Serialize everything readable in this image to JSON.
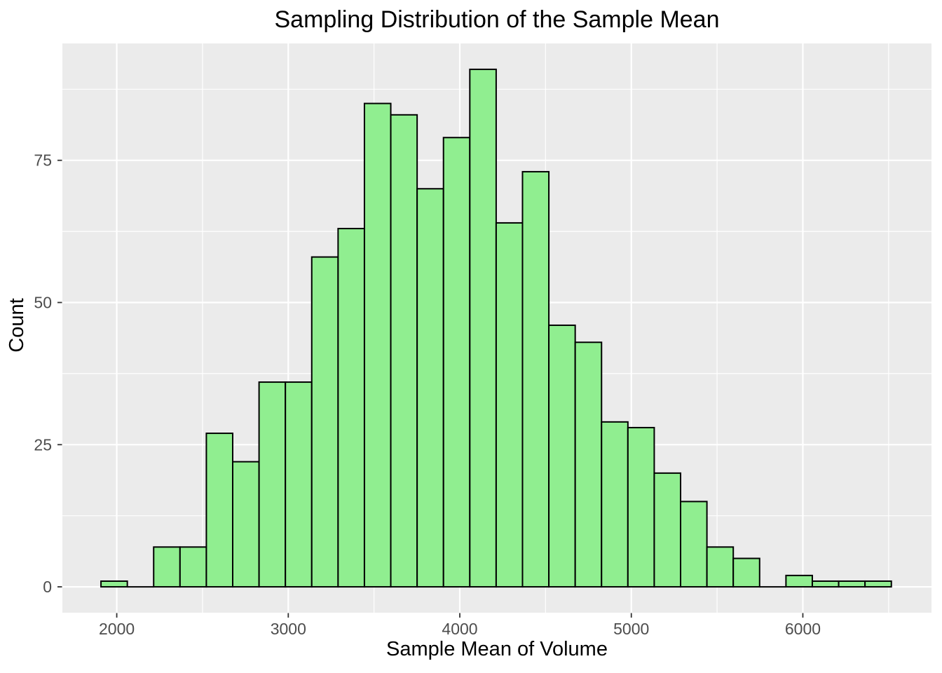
{
  "figure": {
    "title": "Sampling Distribution of the Sample Mean",
    "x_axis_title": "Sample Mean of Volume",
    "y_axis_title": "Count"
  },
  "chart_data": {
    "type": "bar",
    "subtype": "histogram",
    "title": "Sampling Distribution of the Sample Mean",
    "xlabel": "Sample Mean of Volume",
    "ylabel": "Count",
    "n_bins": 30,
    "bin_start": 1908,
    "bin_width": 153.6,
    "counts": [
      1,
      0,
      7,
      7,
      27,
      22,
      36,
      36,
      58,
      63,
      85,
      83,
      70,
      79,
      91,
      64,
      73,
      46,
      43,
      29,
      28,
      20,
      15,
      7,
      5,
      0,
      2,
      1,
      1,
      1
    ],
    "total_samples": 1000,
    "x_ticks_major": [
      2000,
      3000,
      4000,
      5000,
      6000
    ],
    "x_tick_labels": [
      "2000",
      "3000",
      "4000",
      "5000",
      "6000"
    ],
    "x_ticks_minor": [
      2500,
      3500,
      4500,
      5500,
      6500
    ],
    "y_ticks_major": [
      0,
      25,
      50,
      75
    ],
    "y_tick_labels": [
      "0",
      "25",
      "50",
      "75"
    ],
    "y_ticks_minor": [
      12.5,
      37.5,
      62.5,
      87.5
    ],
    "xlim": [
      1683,
      6750
    ],
    "ylim": [
      -4.55,
      95.55
    ],
    "grid": true,
    "legend_position": "none",
    "colors": {
      "bar_fill": "#90EE90",
      "bar_stroke": "#000000",
      "panel_background": "#EBEBEB",
      "gridline": "#FFFFFF",
      "tick_mark": "#333333",
      "tick_label": "#4D4D4D",
      "title_text": "#000000",
      "page_background": "#FFFFFF"
    }
  }
}
